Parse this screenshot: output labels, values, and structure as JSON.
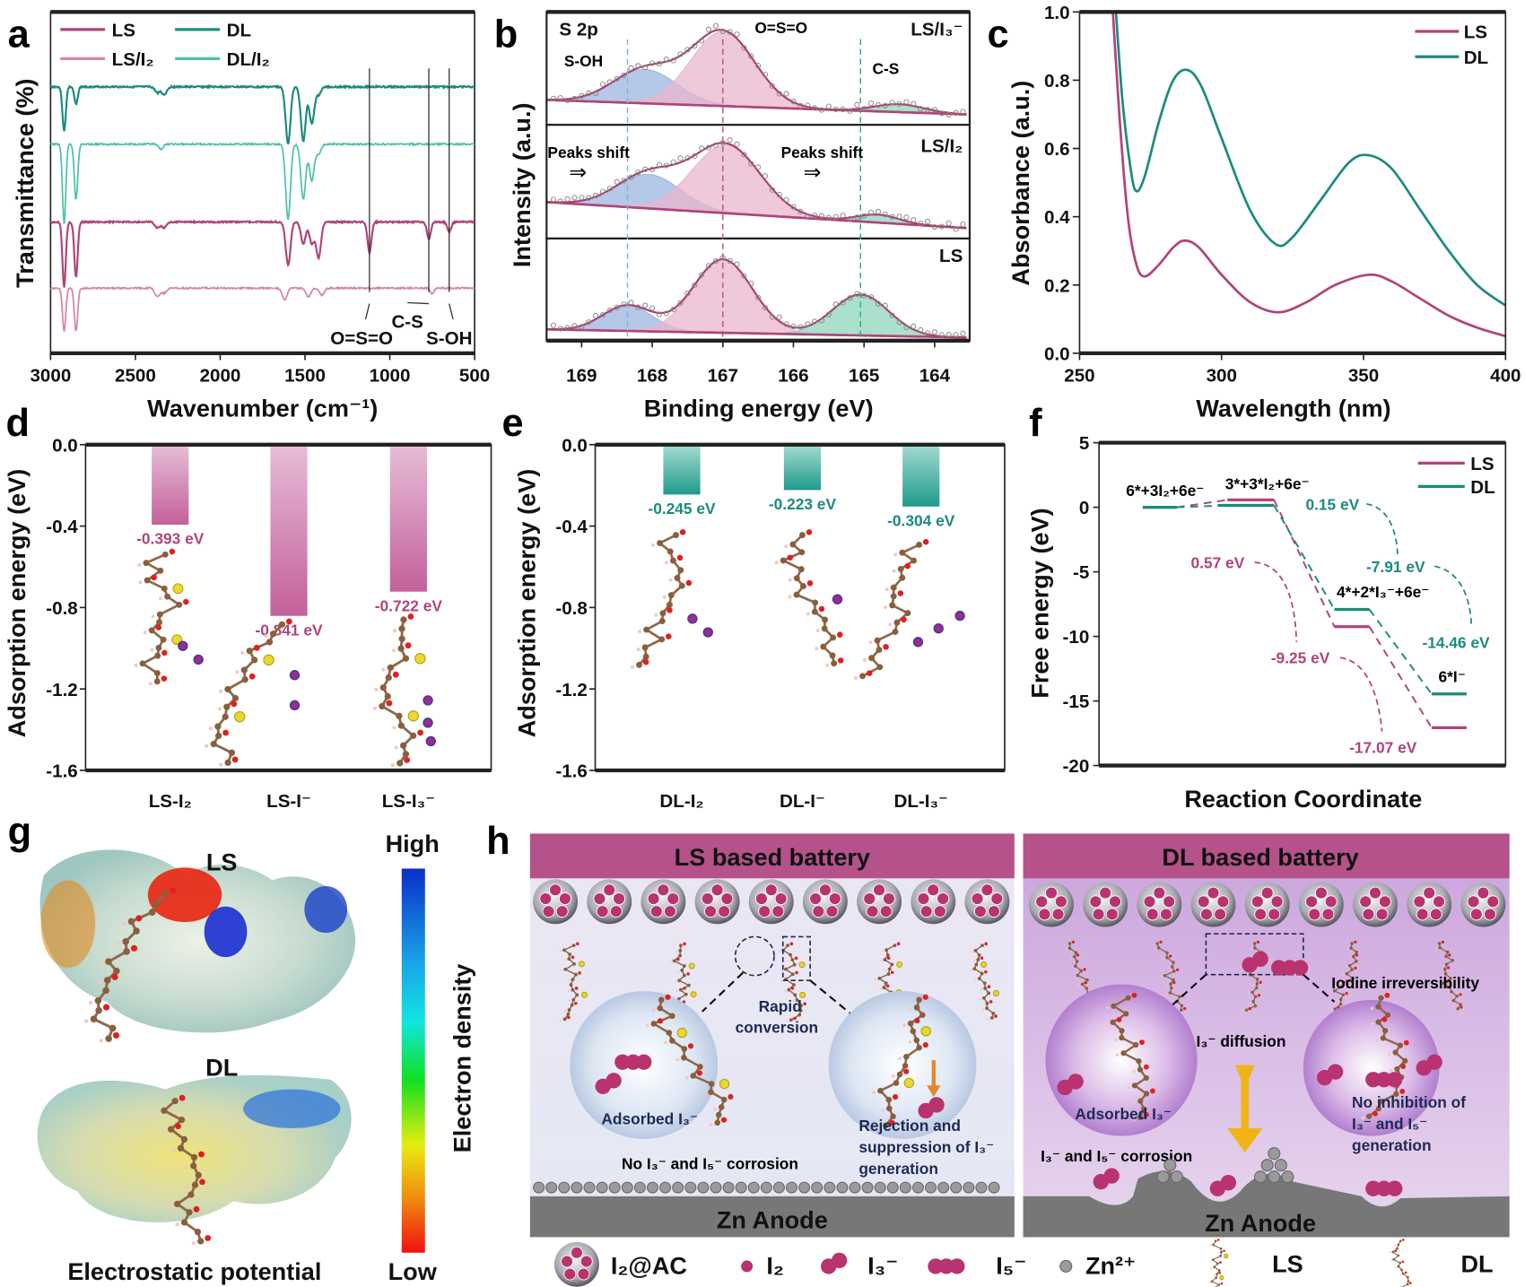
{
  "panel_labels": {
    "a": "a",
    "b": "b",
    "c": "c",
    "d": "d",
    "e": "e",
    "f": "f",
    "g": "g",
    "h": "h"
  },
  "chart_data": [
    {
      "panel": "a",
      "type": "line",
      "xlabel": "Wavenumber (cm⁻¹)",
      "ylabel": "Transmittance (%)",
      "xlim": [
        3000,
        500
      ],
      "xticks": [
        3000,
        2500,
        2000,
        1500,
        1000,
        500
      ],
      "legend_position": "top-left",
      "series": [
        {
          "name": "DL",
          "color": "#1b8a7e",
          "peaks": [
            [
              2920,
              46
            ],
            [
              2850,
              18
            ],
            [
              2370,
              6
            ],
            [
              2330,
              8
            ],
            [
              1600,
              58
            ],
            [
              1510,
              56
            ],
            [
              1460,
              38
            ],
            [
              1420,
              8
            ]
          ]
        },
        {
          "name": "DL/I₂",
          "color": "#4fbfae",
          "peaks": [
            [
              2920,
              82
            ],
            [
              2850,
              57
            ],
            [
              2350,
              5
            ],
            [
              1600,
              77
            ],
            [
              1510,
              57
            ],
            [
              1460,
              37
            ],
            [
              1420,
              10
            ]
          ]
        },
        {
          "name": "LS",
          "color": "#b0447a",
          "peaks": [
            [
              2920,
              67
            ],
            [
              2850,
              57
            ],
            [
              2370,
              6
            ],
            [
              2330,
              6
            ],
            [
              1600,
              44
            ],
            [
              1510,
              22
            ],
            [
              1460,
              22
            ],
            [
              1420,
              37
            ],
            [
              1120,
              32
            ],
            [
              770,
              17
            ],
            [
              650,
              10
            ]
          ]
        },
        {
          "name": "LS/I₂",
          "color": "#d883ad",
          "peaks": [
            [
              2920,
              44
            ],
            [
              2850,
              44
            ],
            [
              2370,
              9
            ],
            [
              2330,
              5
            ],
            [
              1620,
              12
            ],
            [
              1480,
              9
            ],
            [
              1400,
              7
            ],
            [
              750,
              6
            ]
          ]
        }
      ],
      "annotations": [
        {
          "label": "O=S=O",
          "x": 1120
        },
        {
          "label": "C-S",
          "x": 770
        },
        {
          "label": "S-OH",
          "x": 650
        }
      ]
    },
    {
      "panel": "b",
      "type": "area",
      "xlabel": "Binding energy (eV)",
      "ylabel": "Intensity (a.u.)",
      "xlim": [
        169.5,
        163.5
      ],
      "xticks": [
        169,
        168,
        167,
        166,
        165,
        164
      ],
      "reference_lines": [
        {
          "x": 168.35,
          "color": "#7fb3d9"
        },
        {
          "x": 167.0,
          "color": "#c0507f"
        },
        {
          "x": 165.05,
          "color": "#2aa58f"
        }
      ],
      "title_text": "S 2p",
      "peak_labels": [
        "S-OH",
        "O=S=O",
        "C-S"
      ],
      "shift_label": "Peaks shift",
      "shift_arrow": "⇒",
      "subpanels": [
        {
          "name": "LS/I₃⁻",
          "baseline": [
            0.22,
            0.09
          ],
          "components": [
            {
              "name": "S-OH",
              "center": 168.1,
              "amp": 0.3,
              "sigma": 0.45,
              "color": "#9db5df"
            },
            {
              "name": "O=S=O",
              "center": 167.0,
              "amp": 0.66,
              "sigma": 0.45,
              "color": "#eab6cc"
            },
            {
              "name": "C-S",
              "center": 164.5,
              "amp": 0.07,
              "sigma": 0.35,
              "color": "#8fd6bb"
            }
          ]
        },
        {
          "name": "LS/I₂",
          "baseline": [
            0.32,
            0.09
          ],
          "components": [
            {
              "name": "S-OH",
              "center": 168.05,
              "amp": 0.3,
              "sigma": 0.45,
              "color": "#9db5df"
            },
            {
              "name": "O=S=O",
              "center": 166.95,
              "amp": 0.6,
              "sigma": 0.48,
              "color": "#eab6cc"
            },
            {
              "name": "C-S",
              "center": 164.8,
              "amp": 0.07,
              "sigma": 0.3,
              "color": "#8fd6bb"
            }
          ]
        },
        {
          "name": "LS",
          "baseline": [
            0.11,
            0.03
          ],
          "components": [
            {
              "name": "S-OH",
              "center": 168.35,
              "amp": 0.25,
              "sigma": 0.35,
              "color": "#9db5df"
            },
            {
              "name": "O=S=O",
              "center": 167.0,
              "amp": 0.72,
              "sigma": 0.42,
              "color": "#eab6cc"
            },
            {
              "name": "C-S",
              "center": 165.05,
              "amp": 0.4,
              "sigma": 0.4,
              "color": "#8fd6bb"
            }
          ]
        }
      ]
    },
    {
      "panel": "c",
      "type": "line",
      "xlabel": "Wavelength (nm)",
      "ylabel": "Absorbance (a.u.)",
      "xlim": [
        250,
        400
      ],
      "ylim": [
        0.0,
        1.0
      ],
      "xticks": [
        250,
        300,
        350,
        400
      ],
      "yticks": [
        "0.0",
        "0.2",
        "0.4",
        "0.6",
        "0.8",
        "1.0"
      ],
      "legend_position": "top-right",
      "series": [
        {
          "name": "LS",
          "color": "#b0447a",
          "points": [
            [
              261,
              1.1
            ],
            [
              264,
              0.7
            ],
            [
              267,
              0.4
            ],
            [
              270,
              0.26
            ],
            [
              273,
              0.225
            ],
            [
              278,
              0.26
            ],
            [
              283,
              0.31
            ],
            [
              287,
              0.33
            ],
            [
              292,
              0.31
            ],
            [
              300,
              0.23
            ],
            [
              310,
              0.15
            ],
            [
              320,
              0.12
            ],
            [
              330,
              0.15
            ],
            [
              340,
              0.2
            ],
            [
              352,
              0.23
            ],
            [
              360,
              0.21
            ],
            [
              370,
              0.16
            ],
            [
              380,
              0.11
            ],
            [
              390,
              0.075
            ],
            [
              400,
              0.05
            ]
          ]
        },
        {
          "name": "DL",
          "color": "#1b8a7e",
          "points": [
            [
              262,
              1.1
            ],
            [
              265,
              0.75
            ],
            [
              268,
              0.54
            ],
            [
              270,
              0.475
            ],
            [
              273,
              0.52
            ],
            [
              278,
              0.68
            ],
            [
              283,
              0.8
            ],
            [
              288,
              0.83
            ],
            [
              293,
              0.78
            ],
            [
              300,
              0.63
            ],
            [
              310,
              0.42
            ],
            [
              319,
              0.32
            ],
            [
              325,
              0.34
            ],
            [
              335,
              0.45
            ],
            [
              345,
              0.56
            ],
            [
              352,
              0.58
            ],
            [
              360,
              0.54
            ],
            [
              370,
              0.42
            ],
            [
              380,
              0.3
            ],
            [
              390,
              0.2
            ],
            [
              400,
              0.14
            ]
          ]
        }
      ]
    },
    {
      "panel": "d",
      "type": "bar",
      "ylabel": "Adsorption energy (eV)",
      "ylim": [
        -1.6,
        0.0
      ],
      "yticks": [
        "0.0",
        "-0.4",
        "-0.8",
        "-1.2",
        "-1.6"
      ],
      "categories": [
        "LS-I₂",
        "LS-I⁻",
        "LS-I₃⁻"
      ],
      "values": [
        -0.393,
        -0.841,
        -0.722
      ],
      "value_labels": [
        "-0.393 eV",
        "-0.841 eV",
        "-0.722 eV"
      ],
      "color": "#c3609a"
    },
    {
      "panel": "e",
      "type": "bar",
      "ylabel": "Adsorption energy (eV)",
      "ylim": [
        -1.6,
        0.0
      ],
      "yticks": [
        "0.0",
        "-0.4",
        "-0.8",
        "-1.2",
        "-1.6"
      ],
      "categories": [
        "DL-I₂",
        "DL-I⁻",
        "DL-I₃⁻"
      ],
      "values": [
        -0.245,
        -0.223,
        -0.304
      ],
      "value_labels": [
        "-0.245 eV",
        "-0.223 eV",
        "-0.304 eV"
      ],
      "color": "#1f9a8a"
    },
    {
      "panel": "f",
      "type": "line",
      "xlabel": "Reaction Coordinate",
      "ylabel": "Free energy (eV)",
      "ylim": [
        -20,
        5
      ],
      "yticks": [
        "5",
        "0",
        "-5",
        "-10",
        "-15",
        "-20"
      ],
      "legend_position": "top-right",
      "states": [
        "6*+3I₂+6e⁻",
        "3*+3*I₂+6e⁻",
        "4*+2*I₃⁻+6e⁻",
        "6*I⁻"
      ],
      "series": [
        {
          "name": "LS",
          "color": "#b0447a",
          "values": [
            0,
            0.57,
            -9.25,
            -17.07
          ],
          "labels": [
            "",
            "0.57 eV",
            "-9.25 eV",
            "-17.07 eV"
          ]
        },
        {
          "name": "DL",
          "color": "#1b8a7e",
          "values": [
            0,
            0.15,
            -7.91,
            -14.46
          ],
          "labels": [
            "",
            "0.15 eV",
            "-7.91 eV",
            "-14.46 eV"
          ]
        }
      ]
    }
  ],
  "panel_g": {
    "molecule_labels": [
      "LS",
      "DL"
    ],
    "colorbar_high": "High",
    "colorbar_low": "Low",
    "colorbar_title": "Electron density",
    "caption": "Electrostatic potential"
  },
  "panel_h": {
    "ls": {
      "header": "LS based battery",
      "rapid": [
        "Rapid",
        "conversion"
      ],
      "adsorbed": "Adsorbed I₃⁻",
      "rejection": [
        "Rejection and",
        "suppression of I₃⁻",
        "generation"
      ],
      "no_corrosion": "No I₃⁻ and I₅⁻ corrosion",
      "anode": "Zn Anode"
    },
    "dl": {
      "header": "DL based battery",
      "irreversibility": "Iodine irreversibility",
      "diffusion": "I₃⁻ diffusion",
      "adsorbed": "Adsorbed I₃⁻",
      "no_inhibition": [
        "No inhibition of",
        "I₃⁻ and I₅⁻",
        "generation"
      ],
      "corrosion": "I₃⁻ and I₅⁻ corrosion",
      "anode": "Zn Anode"
    },
    "legend": [
      "I₂@AC",
      "I₂",
      "I₃⁻",
      "I₅⁻",
      "Zn²⁺",
      "LS",
      "DL"
    ],
    "colors": {
      "header": "#b5528a",
      "ls_bg": "#e7e5f3",
      "dl_bg": "#dcbde6",
      "anode": "#777777",
      "iodine": "#b8336f"
    }
  }
}
